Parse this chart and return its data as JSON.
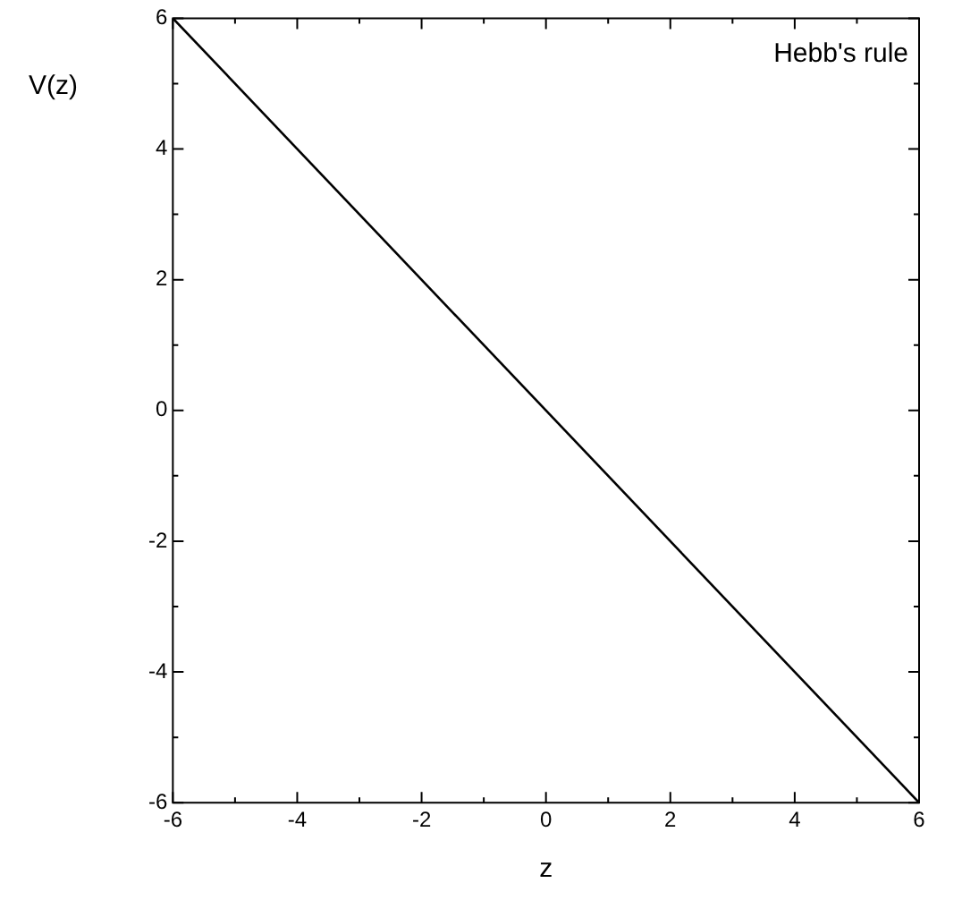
{
  "chart_data": {
    "type": "line",
    "xlabel": "z",
    "ylabel": "V(z)",
    "annotations": [
      "Hebb's rule"
    ],
    "x": [
      -6,
      6
    ],
    "series": [
      {
        "color": "#000000",
        "values": [
          6,
          -6
        ]
      }
    ],
    "xlim": [
      -6,
      6
    ],
    "ylim": [
      -6,
      6
    ],
    "xticks": [
      -6,
      {
        "value": -5,
        "label": null
      },
      -4,
      {
        "value": -3,
        "label": null
      },
      -2,
      {
        "value": -1,
        "label": null
      },
      0,
      {
        "value": 1,
        "label": null
      },
      2,
      {
        "value": 3,
        "label": null
      },
      4,
      {
        "value": 5,
        "label": null
      },
      6
    ],
    "yticks": [
      -6,
      {
        "value": -5,
        "label": null
      },
      -4,
      {
        "value": -3,
        "label": null
      },
      -2,
      {
        "value": -1,
        "label": null
      },
      0,
      {
        "value": 1,
        "label": null
      },
      2,
      {
        "value": 3,
        "label": null
      },
      4,
      {
        "value": 5,
        "label": null
      },
      6
    ],
    "grid": false,
    "legend": false,
    "marker": "none",
    "line_style": "solid"
  }
}
